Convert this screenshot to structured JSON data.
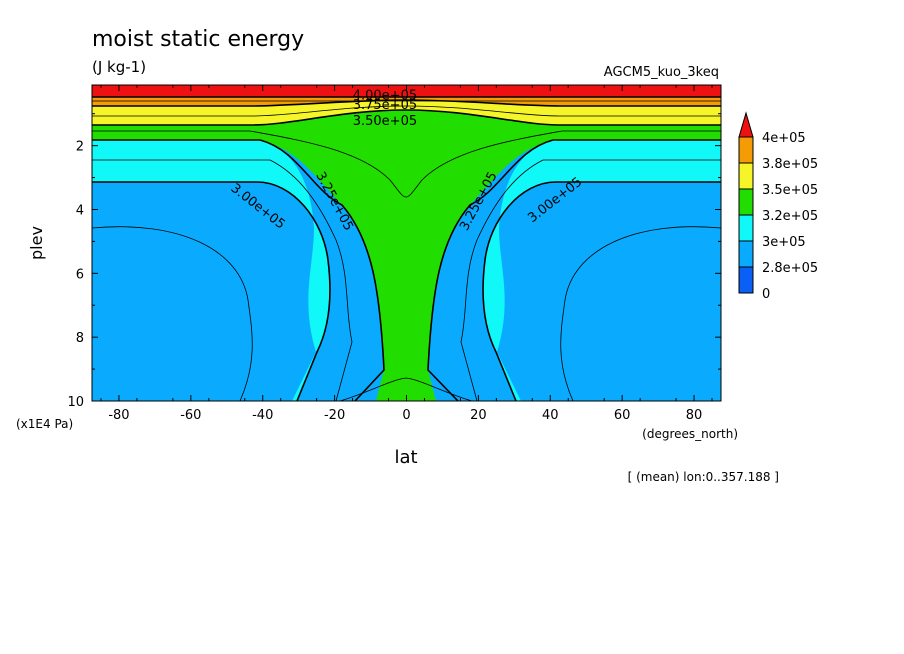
{
  "chart_data": {
    "type": "contour",
    "title": "moist static energy",
    "units": "(J kg-1)",
    "experiment": "AGCM5_kuo_3keq",
    "xlabel": "lat",
    "x_units": "(degrees_north)",
    "ylabel": "plev",
    "y_units": "(x1E4 Pa)",
    "x_range": [
      -87.5,
      87.5
    ],
    "y_range": [
      0.1,
      10
    ],
    "y_inverted": true,
    "x_ticks": [
      -80,
      -60,
      -40,
      -20,
      0,
      20,
      40,
      60,
      80
    ],
    "y_ticks": [
      2,
      4,
      6,
      8,
      10
    ],
    "footer": "[ (mean) lon:0..357.188 ]",
    "colorbar": {
      "placement": "right",
      "labels": [
        "4e+05",
        "3.8e+05",
        "3.5e+05",
        "3.2e+05",
        "3e+05",
        "2.8e+05",
        "0"
      ],
      "colors": [
        "#ee1111",
        "#f59b06",
        "#f5f52a",
        "#22dd00",
        "#11f8f8",
        "#0aabff",
        "#0a5ff5"
      ]
    },
    "contour_labels": [
      {
        "text": "4.00e+05",
        "lat": -6,
        "plev": 0.55
      },
      {
        "text": "3.75e+05",
        "lat": -6,
        "plev": 0.85
      },
      {
        "text": "3.50e+05",
        "lat": -6,
        "plev": 1.35
      },
      {
        "text": "3.00e+05",
        "lat": -42,
        "plev": 4.0
      },
      {
        "text": "3.25e+05",
        "lat": -21,
        "plev": 3.8
      },
      {
        "text": "3.25e+05",
        "lat": 21,
        "plev": 3.8
      },
      {
        "text": "3.00e+05",
        "lat": 42,
        "plev": 3.8
      }
    ]
  }
}
